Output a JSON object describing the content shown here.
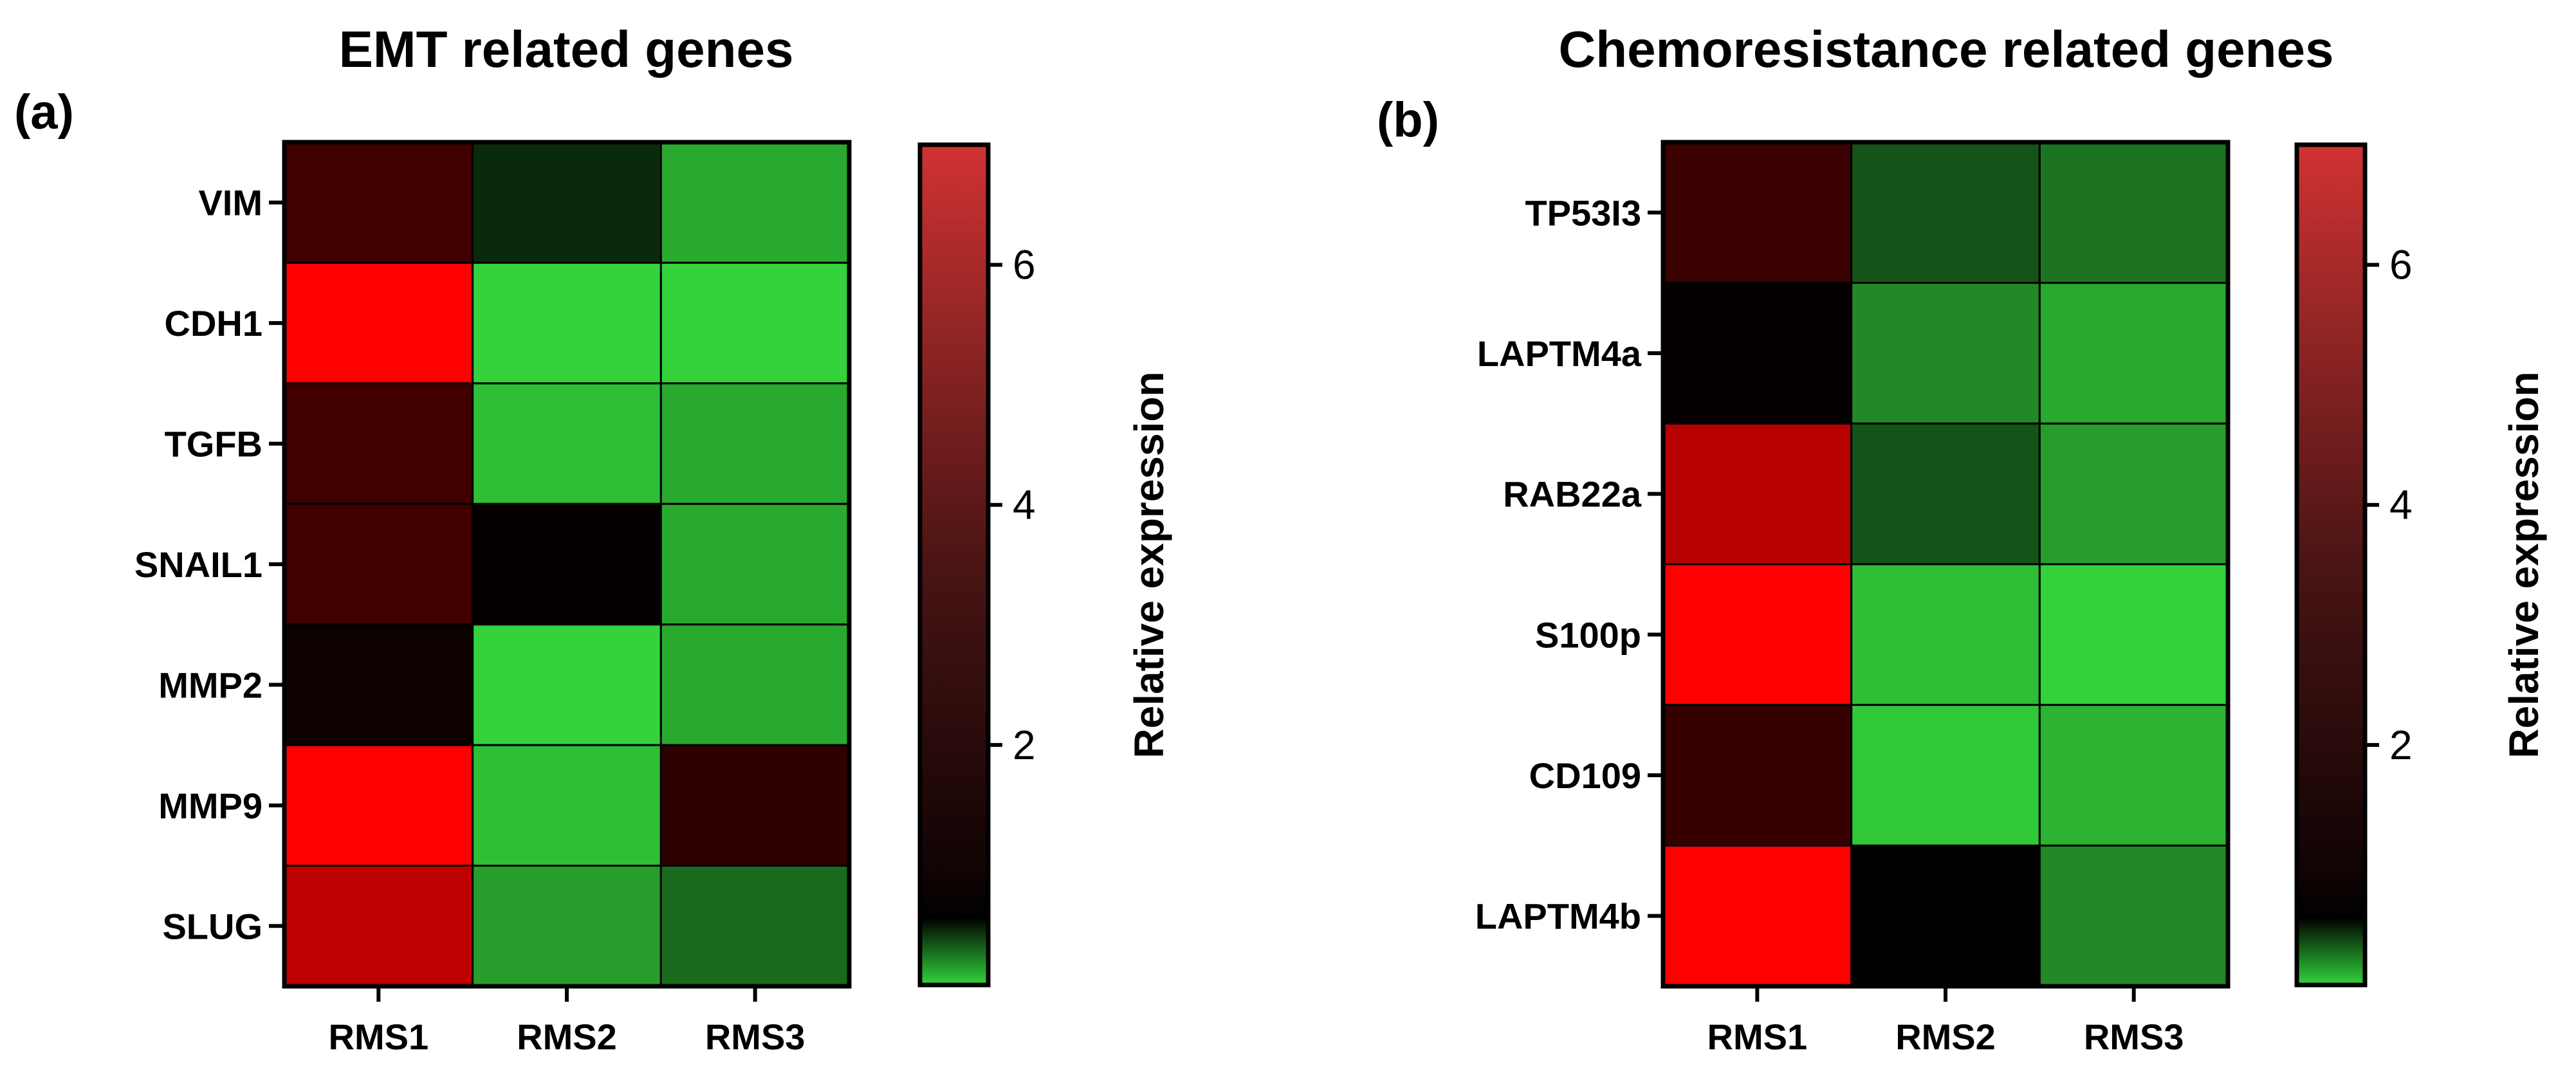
{
  "chart_data": [
    {
      "type": "heatmap",
      "panel_label": "(a)",
      "title": "EMT related genes",
      "rows": [
        "VIM",
        "CDH1",
        "TGFB",
        "SNAIL1",
        "MMP2",
        "MMP9",
        "SLUG"
      ],
      "columns": [
        "RMS1",
        "RMS2",
        "RMS3"
      ],
      "values": [
        [
          2.5,
          0.8,
          0.2
        ],
        [
          7.0,
          0.0,
          0.0
        ],
        [
          2.5,
          0.1,
          0.2
        ],
        [
          2.5,
          1.1,
          0.2
        ],
        [
          1.3,
          0.0,
          0.2
        ],
        [
          7.0,
          0.1,
          2.1
        ],
        [
          5.5,
          0.25,
          0.5
        ]
      ],
      "colorbar": {
        "label": "Relative expression",
        "ticks": [
          "2",
          "4",
          "6"
        ],
        "tick_values": [
          2,
          4,
          6
        ],
        "range": [
          0,
          7
        ]
      }
    },
    {
      "type": "heatmap",
      "panel_label": "(b)",
      "title": "Chemoresistance related genes",
      "rows": [
        "TP53I3",
        "LAPTM4a",
        "RAB22a",
        "S100p",
        "CD109",
        "LAPTM4b"
      ],
      "columns": [
        "RMS1",
        "RMS2",
        "RMS3"
      ],
      "values": [
        [
          2.4,
          0.6,
          0.45
        ],
        [
          1.1,
          0.35,
          0.2
        ],
        [
          5.3,
          0.6,
          0.25
        ],
        [
          7.0,
          0.1,
          0.0
        ],
        [
          2.3,
          0.05,
          0.15
        ],
        [
          7.0,
          1.0,
          0.35
        ]
      ],
      "colorbar": {
        "label": "Relative expression",
        "ticks": [
          "2",
          "4",
          "6"
        ],
        "tick_values": [
          2,
          4,
          6
        ],
        "range": [
          0,
          7
        ]
      }
    }
  ],
  "colors": {
    "scale_low": "#34d33b",
    "scale_mid": "#000000",
    "scale_high": "#ff0000",
    "mid_value": 1
  }
}
